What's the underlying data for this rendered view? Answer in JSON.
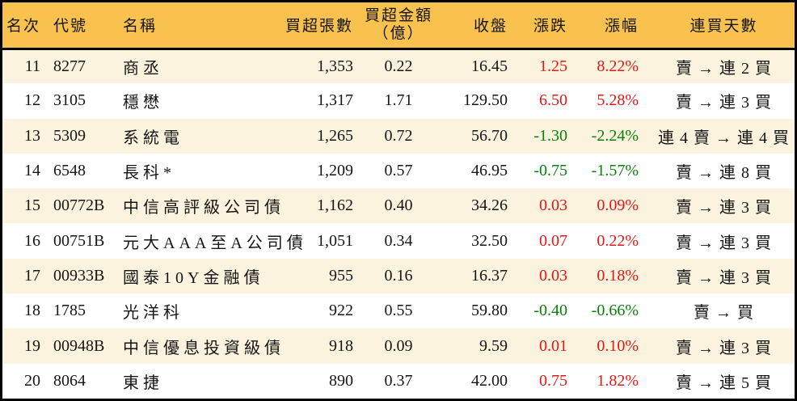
{
  "chart_data": {
    "type": "table",
    "columns": [
      {
        "key": "rank",
        "label": "名次"
      },
      {
        "key": "code",
        "label": "代號"
      },
      {
        "key": "name",
        "label": "名稱"
      },
      {
        "key": "volume",
        "label": "買超張數"
      },
      {
        "key": "amount",
        "label": "買超金額",
        "label_line2": "（億）"
      },
      {
        "key": "close",
        "label": "收盤"
      },
      {
        "key": "change",
        "label": "漲跌"
      },
      {
        "key": "pct",
        "label": "漲幅"
      },
      {
        "key": "days",
        "label": "連買天數"
      }
    ],
    "rows": [
      {
        "rank": "11",
        "code": "8277",
        "name": "商丞",
        "volume": "1,353",
        "amount": "0.22",
        "close": "16.45",
        "change": "1.25",
        "pct": "8.22%",
        "days": "賣 → 連 2 買",
        "trend": "up"
      },
      {
        "rank": "12",
        "code": "3105",
        "name": "穩懋",
        "volume": "1,317",
        "amount": "1.71",
        "close": "129.50",
        "change": "6.50",
        "pct": "5.28%",
        "days": "賣 → 連 3 買",
        "trend": "up"
      },
      {
        "rank": "13",
        "code": "5309",
        "name": "系統電",
        "volume": "1,265",
        "amount": "0.72",
        "close": "56.70",
        "change": "-1.30",
        "pct": "-2.24%",
        "days": "連 4 賣 → 連 4 買",
        "trend": "down"
      },
      {
        "rank": "14",
        "code": "6548",
        "name": "長科*",
        "volume": "1,209",
        "amount": "0.57",
        "close": "46.95",
        "change": "-0.75",
        "pct": "-1.57%",
        "days": "賣 → 連 8 買",
        "trend": "down"
      },
      {
        "rank": "15",
        "code": "00772B",
        "name": "中信高評級公司債",
        "volume": "1,162",
        "amount": "0.40",
        "close": "34.26",
        "change": "0.03",
        "pct": "0.09%",
        "days": "賣 → 連 3 買",
        "trend": "up"
      },
      {
        "rank": "16",
        "code": "00751B",
        "name": "元大AAA至A公司債",
        "volume": "1,051",
        "amount": "0.34",
        "close": "32.50",
        "change": "0.07",
        "pct": "0.22%",
        "days": "賣 → 連 3 買",
        "trend": "up"
      },
      {
        "rank": "17",
        "code": "00933B",
        "name": "國泰10Y金融債",
        "volume": "955",
        "amount": "0.16",
        "close": "16.37",
        "change": "0.03",
        "pct": "0.18%",
        "days": "賣 → 連 3 買",
        "trend": "up"
      },
      {
        "rank": "18",
        "code": "1785",
        "name": "光洋科",
        "volume": "922",
        "amount": "0.55",
        "close": "59.80",
        "change": "-0.40",
        "pct": "-0.66%",
        "days": "賣 → 買",
        "trend": "down"
      },
      {
        "rank": "19",
        "code": "00948B",
        "name": "中信優息投資級債",
        "volume": "918",
        "amount": "0.09",
        "close": "9.59",
        "change": "0.01",
        "pct": "0.10%",
        "days": "賣 → 連 3 買",
        "trend": "up"
      },
      {
        "rank": "20",
        "code": "8064",
        "name": "東捷",
        "volume": "890",
        "amount": "0.37",
        "close": "42.00",
        "change": "0.75",
        "pct": "1.82%",
        "days": "賣 → 連 5 買",
        "trend": "up"
      }
    ]
  },
  "colors": {
    "header_bg": "#F9C14D",
    "row_alt_bg": "#FCF3DE",
    "row_bg": "#FFFFFF",
    "up": "#E81515",
    "down": "#087F08",
    "border": "#000000",
    "text": "#151515"
  }
}
